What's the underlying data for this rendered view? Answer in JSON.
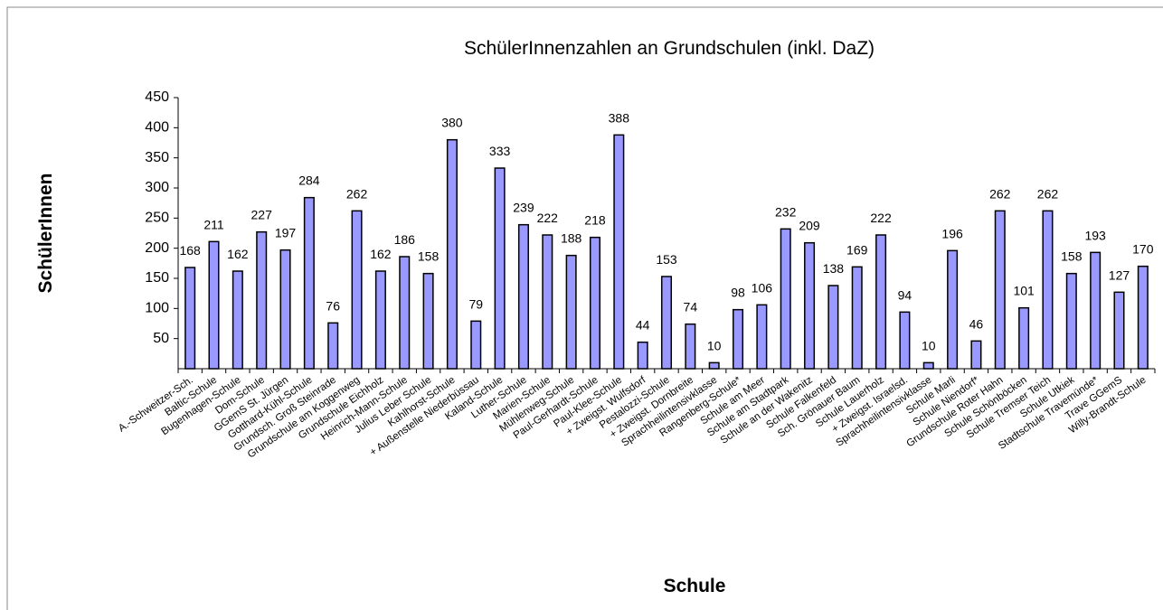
{
  "chart_data": {
    "type": "bar",
    "title": "SchülerInnenzahlen an Grundschulen (inkl. DaZ)",
    "y_label": "SchülerInnen",
    "x_label": "Schule",
    "categories": [
      "A.-Schweitzer-Sch.",
      "Baltic-Schule",
      "Bugenhagen-Schule",
      "Dom-Schule",
      "GGemS St. Jürgen",
      "Gotthard-Kühl-Schule",
      "Grundsch. Groß Steinrade",
      "Grundschule am Koggenweg",
      "Grundschule Eichholz",
      "Heinrich-Mann-Schule",
      "Julius Leber Schule",
      "Kahlhorst-Schule",
      "+ Außenstelle Niederbüssau",
      "Kaland-Schule",
      "Luther-Schule",
      "Marien-Schule",
      "Mühlenweg-Schule",
      "Paul-Gerhardt-Schule",
      "Paul-Klee-Schule",
      "+ Zweigst. Wulfsdorf",
      "Pestalozzi-Schule",
      "+ Zweigst. Dornbreite",
      "Sprachheilintensivklasse",
      "Rangenberg-Schule*",
      "Schule am Meer",
      "Schule am Stadtpark",
      "Schule an der Wakenitz",
      "Schule Falkenfeld",
      "Sch. Grönauer Baum",
      "Schule Lauerholz",
      "+ Zweigst. Israelsd.",
      "Sprachheilintensivklasse",
      "Schule Marli",
      "Schule Niendorf*",
      "Grundschule Roter Hahn",
      "Schule Schönböcken",
      "Schule Tremser Teich",
      "Schule Utkiek",
      "Stadtschule Travemünde*",
      "Trave GGemS",
      "Willy-Brandt-Schule"
    ],
    "values": [
      168,
      211,
      162,
      227,
      197,
      284,
      76,
      262,
      162,
      186,
      158,
      380,
      79,
      333,
      239,
      222,
      188,
      218,
      388,
      44,
      153,
      74,
      10,
      98,
      106,
      232,
      209,
      138,
      169,
      222,
      94,
      10,
      196,
      46,
      262,
      101,
      262,
      158,
      193,
      127,
      170
    ],
    "color": "#9999ff",
    "ylim": [
      0,
      450
    ],
    "yticks": [
      50,
      100,
      150,
      200,
      250,
      300,
      350,
      400,
      450
    ],
    "grid": false
  }
}
